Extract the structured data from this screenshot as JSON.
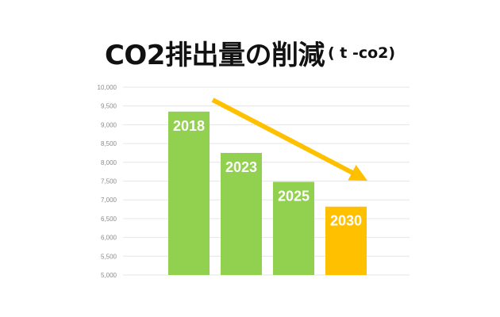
{
  "title": {
    "main": "CO2排出量の削減",
    "unit": "( t -co2)"
  },
  "chart_data": {
    "type": "bar",
    "title": "CO2排出量の削減 ( t -co2)",
    "xlabel": "",
    "ylabel": "",
    "ylim": [
      5000,
      10000
    ],
    "grid": true,
    "yticks": [
      "5,000",
      "5,500",
      "6,000",
      "6,500",
      "7,000",
      "7,500",
      "8,000",
      "8,500",
      "9,000",
      "9,500",
      "10,000"
    ],
    "categories": [
      "2018",
      "2023",
      "2025",
      "2030"
    ],
    "values": [
      9350,
      8250,
      7480,
      6820
    ],
    "bar_labels": [
      "2018",
      "2023",
      "2025",
      "2030"
    ],
    "bar_colors": [
      "#92d050",
      "#92d050",
      "#92d050",
      "#ffc000"
    ],
    "annotations": [
      {
        "type": "arrow",
        "direction": "down-right",
        "color": "#ffc000"
      }
    ]
  },
  "colors": {
    "bar_green": "#92d050",
    "bar_target": "#ffc000",
    "arrow": "#ffc000",
    "grid": "#e6e6e6",
    "tick_text": "#8c8c8c"
  }
}
